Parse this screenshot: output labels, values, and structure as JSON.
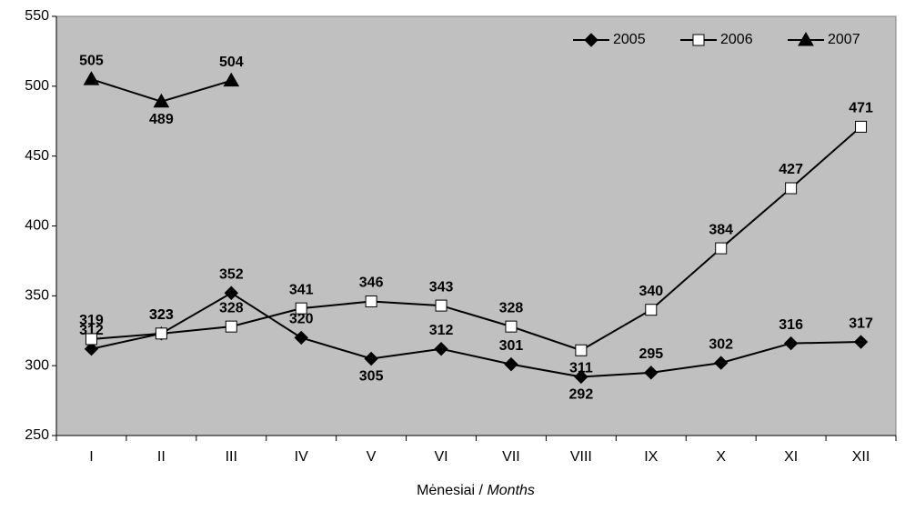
{
  "chart_data": {
    "type": "line",
    "x_label": [
      "Mėnesiai /",
      "Months"
    ],
    "categories": [
      "I",
      "II",
      "III",
      "IV",
      "V",
      "VI",
      "VII",
      "VIII",
      "IX",
      "X",
      "XI",
      "XII"
    ],
    "series": [
      {
        "name": "2005",
        "color": "#000000",
        "marker": "diamond",
        "marker_fill": "#000000",
        "values": [
          312,
          323,
          352,
          320,
          305,
          312,
          301,
          292,
          295,
          302,
          316,
          317
        ]
      },
      {
        "name": "2006",
        "color": "#000000",
        "marker": "square",
        "marker_fill": "#ffffff",
        "values": [
          319,
          323,
          328,
          341,
          346,
          343,
          328,
          311,
          340,
          384,
          427,
          471
        ]
      },
      {
        "name": "2007",
        "color": "#000000",
        "marker": "triangle",
        "marker_fill": "#000000",
        "values": [
          505,
          489,
          504,
          null,
          null,
          null,
          null,
          null,
          null,
          null,
          null,
          null
        ]
      }
    ],
    "ylim": [
      250,
      550
    ],
    "yticks": [
      250,
      300,
      350,
      400,
      450,
      500,
      550
    ],
    "plot_background": "#c0c0c0",
    "legend": "top-right"
  }
}
